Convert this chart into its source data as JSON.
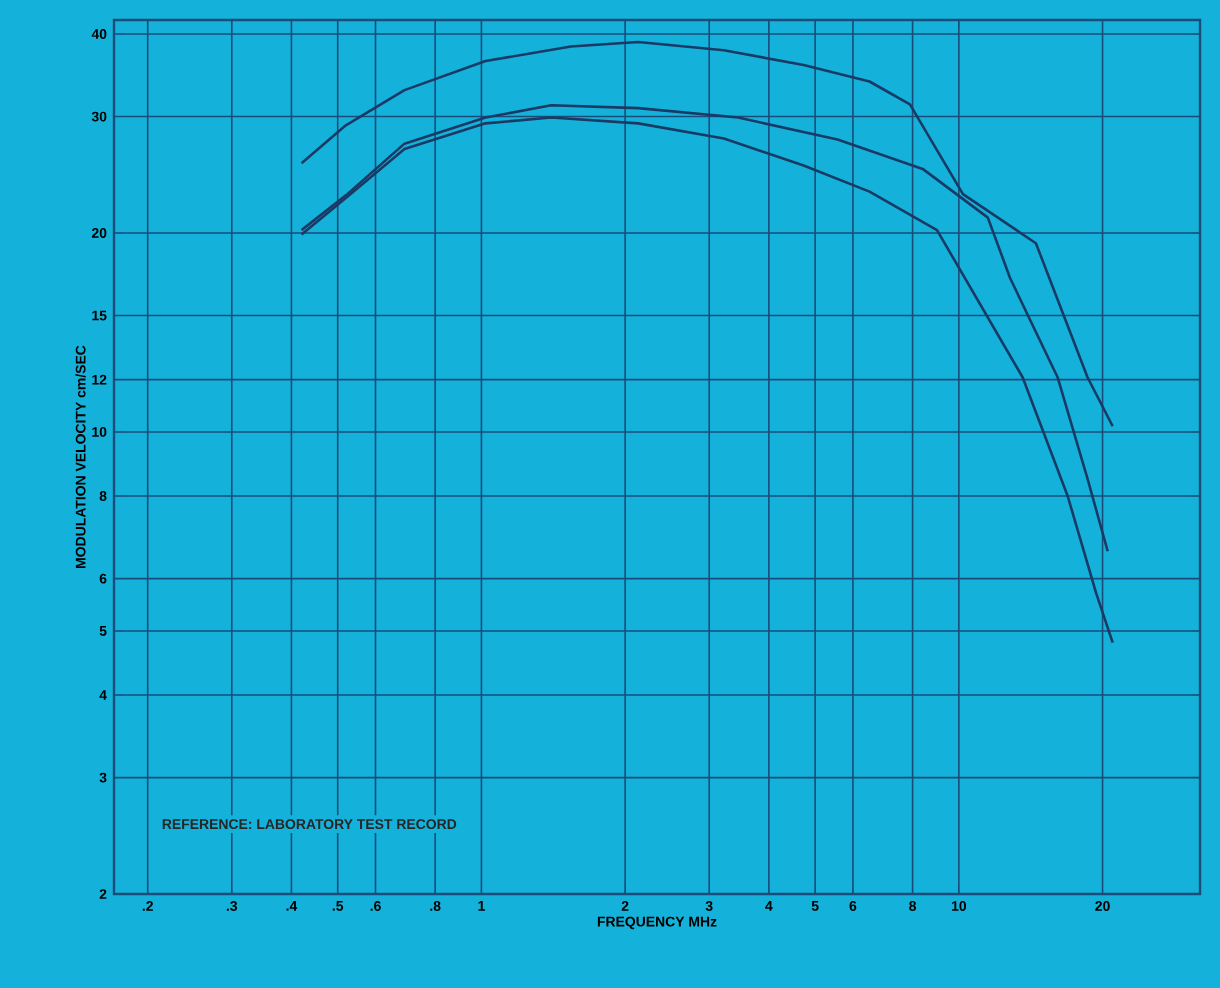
{
  "chart_data": {
    "type": "line",
    "xlabel": "FREQUENCY MHz",
    "ylabel": "MODULATION VELOCITY cm/SEC",
    "log": "xy",
    "grid": true,
    "line_style": "solid",
    "marker": "none",
    "xlim": [
      0.17,
      32
    ],
    "ylim": [
      2,
      42
    ],
    "xticks": [
      {
        "value": 0.2,
        "label": ".2"
      },
      {
        "value": 0.3,
        "label": ".3"
      },
      {
        "value": 0.4,
        "label": ".4"
      },
      {
        "value": 0.5,
        "label": ".5"
      },
      {
        "value": 0.6,
        "label": ".6"
      },
      {
        "value": 0.8,
        "label": ".8"
      },
      1,
      2,
      3,
      4,
      5,
      6,
      8,
      10,
      20
    ],
    "yticks": [
      2,
      3,
      4,
      5,
      6,
      8,
      10,
      12,
      15,
      20,
      30,
      40
    ],
    "series": [
      {
        "color": "#1a3a66",
        "x": [
          0.42,
          0.52,
          0.69,
          1.02,
          1.54,
          2.13,
          3.22,
          4.73,
          6.5,
          7.9,
          10.2,
          14.5,
          18.6,
          21
        ],
        "values": [
          25.5,
          29.1,
          32.9,
          36.4,
          38.3,
          38.9,
          37.8,
          35.9,
          33.9,
          31.3,
          22.9,
          19.3,
          12.1,
          10.2
        ]
      },
      {
        "color": "#1a3a66",
        "x": [
          0.42,
          0.52,
          0.69,
          1.02,
          1.4,
          2.13,
          3.45,
          5.57,
          8.4,
          11.5,
          12.8,
          16.1,
          18.6,
          20.5
        ],
        "values": [
          20.2,
          22.8,
          27.3,
          29.9,
          31.2,
          30.9,
          29.9,
          27.7,
          25.0,
          21.1,
          17.1,
          12.1,
          8.5,
          6.6
        ]
      },
      {
        "color": "#1a3a66",
        "x": [
          0.42,
          0.52,
          0.69,
          1.02,
          1.4,
          2.13,
          3.22,
          4.73,
          6.5,
          9.0,
          13.6,
          16.9,
          19.4,
          21
        ],
        "values": [
          19.9,
          22.6,
          26.8,
          29.3,
          29.9,
          29.3,
          27.8,
          25.3,
          23.1,
          20.2,
          12.1,
          8.0,
          5.7,
          4.8
        ]
      }
    ],
    "annotations": [
      "REFERENCE: LABORATORY TEST RECORD"
    ]
  }
}
